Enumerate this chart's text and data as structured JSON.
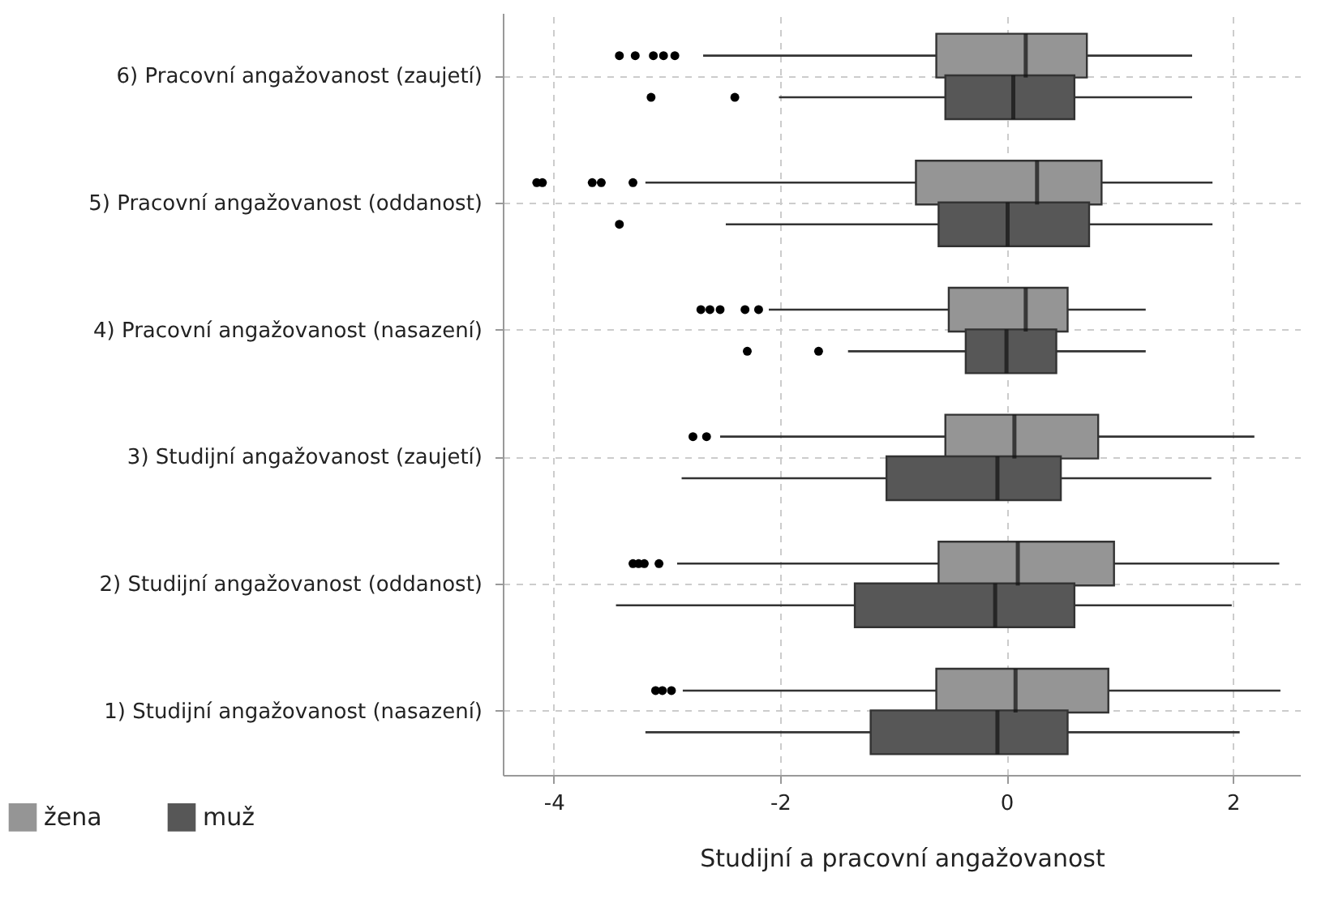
{
  "chart_data": {
    "type": "box",
    "orientation": "horizontal",
    "xlabel": "Studijní a pracovní angažovanost",
    "xlim": [
      -4.45,
      2.6
    ],
    "xticks": [
      -4,
      -2,
      0,
      2
    ],
    "grid": true,
    "legend": "bottom left",
    "categories": [
      "6) Pracovní angažovanost (zaujetí)",
      "5) Pracovní angažovanost (oddanost)",
      "4) Pracovní angažovanost (nasazení)",
      "3) Studijní angažovanost (zaujetí)",
      "2) Studijní angažovanost (oddanost)",
      "1) Studijní angažovanost (nasazení)"
    ],
    "series": [
      {
        "name": "žena",
        "color": "#959595",
        "boxes": [
          {
            "low": -2.68,
            "q1": -0.62,
            "median": 0.17,
            "q3": 0.71,
            "high": 1.64,
            "outliers": [
              -3.42,
              -3.28,
              -3.12,
              -3.03,
              -2.93
            ]
          },
          {
            "low": -3.19,
            "q1": -0.8,
            "median": 0.27,
            "q3": 0.84,
            "high": 1.82,
            "outliers": [
              -4.15,
              -4.1,
              -3.66,
              -3.58,
              -3.3
            ]
          },
          {
            "low": -2.1,
            "q1": -0.51,
            "median": 0.17,
            "q3": 0.54,
            "high": 1.23,
            "outliers": [
              -2.7,
              -2.62,
              -2.53,
              -2.31,
              -2.19
            ]
          },
          {
            "low": -2.53,
            "q1": -0.54,
            "median": 0.07,
            "q3": 0.81,
            "high": 2.19,
            "outliers": [
              -2.77,
              -2.65
            ]
          },
          {
            "low": -2.91,
            "q1": -0.6,
            "median": 0.1,
            "q3": 0.95,
            "high": 2.41,
            "outliers": [
              -3.3,
              -3.25,
              -3.2,
              -3.07
            ]
          },
          {
            "low": -2.86,
            "q1": -0.62,
            "median": 0.08,
            "q3": 0.9,
            "high": 2.42,
            "outliers": [
              -3.1,
              -3.04,
              -2.96
            ]
          }
        ]
      },
      {
        "name": "muž",
        "color": "#575757",
        "boxes": [
          {
            "low": -2.01,
            "q1": -0.54,
            "median": 0.06,
            "q3": 0.6,
            "high": 1.64,
            "outliers": [
              -3.14,
              -2.4
            ]
          },
          {
            "low": -2.48,
            "q1": -0.6,
            "median": 0.01,
            "q3": 0.73,
            "high": 1.82,
            "outliers": [
              -3.42
            ]
          },
          {
            "low": -1.4,
            "q1": -0.36,
            "median": 0.0,
            "q3": 0.44,
            "high": 1.23,
            "outliers": [
              -2.29,
              -1.66
            ]
          },
          {
            "low": -2.87,
            "q1": -1.06,
            "median": -0.08,
            "q3": 0.48,
            "high": 1.81
          },
          {
            "low": -3.45,
            "q1": -1.34,
            "median": -0.1,
            "q3": 0.6,
            "high": 1.99
          },
          {
            "low": -3.19,
            "q1": -1.2,
            "median": -0.08,
            "q3": 0.54,
            "high": 2.06
          }
        ]
      }
    ]
  }
}
